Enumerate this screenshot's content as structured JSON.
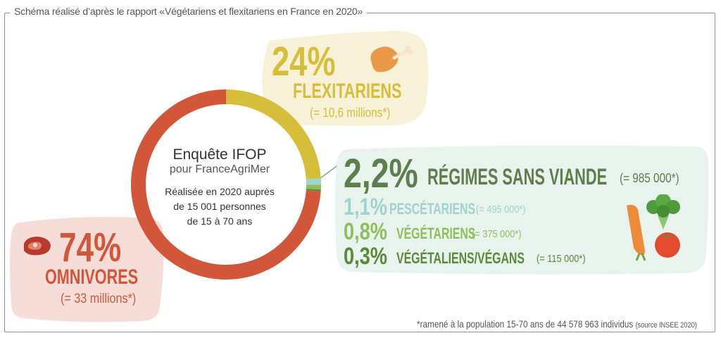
{
  "header": {
    "title": "Schéma réalisé d’après le rapport «Végétariens et flexitariens en France en 2020»"
  },
  "center": {
    "line1": "Enquête IFOP",
    "line2": "pour FranceAgriMer",
    "line3": "Réalisée en 2020 auprès",
    "line4": "de 15 001 personnes",
    "line5": "de 15 à 70 ans"
  },
  "flexitariens": {
    "pct": "24%",
    "label": "FLEXITARIENS",
    "count": "(= 10,6 millions*)"
  },
  "sans_viande": {
    "pct": "2,2%",
    "label": "RÉGIMES SANS VIANDE",
    "count": "(= 985 000*)"
  },
  "pescetariens": {
    "pct": "1,1%",
    "label": "PESCÉTARIENS",
    "count": "(= 495 000*)"
  },
  "vegetariens": {
    "pct": "0,8%",
    "label": "VÉGÉTARIENS",
    "count": "(= 375 000*)"
  },
  "vegetaliens": {
    "pct": "0,3%",
    "label": "VÉGÉTALIENS/VÉGANS",
    "count": "(= 115 000*)"
  },
  "omnivores": {
    "pct": "74%",
    "label": "OMNIVORES",
    "count": "(= 33 millions*)"
  },
  "footnote": {
    "main": "*ramené à la population 15-70 ans de 44 578 963 individus",
    "source": "(source INSEE 2020)"
  },
  "colors": {
    "flexitariens": "#d7be3a",
    "omnivores": "#d2573a",
    "pescetariens": "#9fd3ce",
    "vegetariens": "#8fbf5a",
    "vegetaliens": "#5a8a3a",
    "sans_viande_text": "#5e7e4c"
  },
  "chart_data": {
    "type": "pie",
    "donut": true,
    "categories": [
      "FLEXITARIENS",
      "PESCÉTARIENS",
      "VÉGÉTARIENS",
      "VÉGÉTALIENS/VÉGANS",
      "OMNIVORES"
    ],
    "values": [
      24,
      1.1,
      0.8,
      0.3,
      74
    ],
    "value_labels": [
      "24%",
      "1,1%",
      "0,8%",
      "0,3%",
      "74%"
    ]
  }
}
